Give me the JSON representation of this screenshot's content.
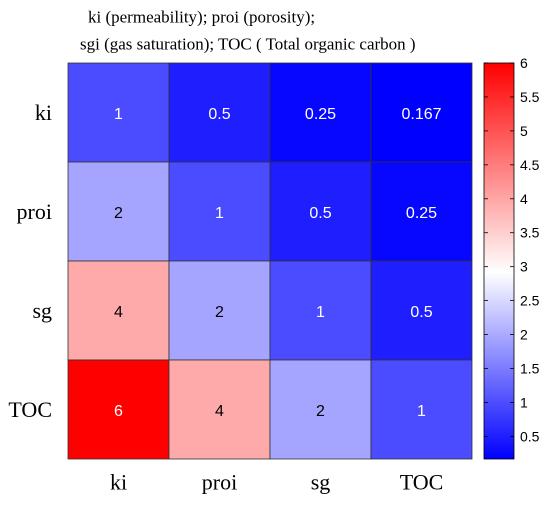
{
  "legend": {
    "line1": "ki (permeability);      proi (porosity);",
    "line2": "sgi (gas saturation);  TOC ( Total organic carbon )"
  },
  "chart_data": {
    "type": "heatmap",
    "row_labels": [
      "ki",
      "proi",
      "sg",
      "TOC"
    ],
    "col_labels": [
      "ki",
      "proi",
      "sg",
      "TOC"
    ],
    "values": [
      [
        1,
        0.5,
        0.25,
        0.167
      ],
      [
        2,
        1,
        0.5,
        0.25
      ],
      [
        4,
        2,
        1,
        0.5
      ],
      [
        6,
        4,
        2,
        1
      ]
    ],
    "cell_text": [
      [
        "1",
        "0.5",
        "0.25",
        "0.167"
      ],
      [
        "2",
        "1",
        "0.5",
        "0.25"
      ],
      [
        "4",
        "2",
        "1",
        "0.5"
      ],
      [
        "6",
        "4",
        "2",
        "1"
      ]
    ],
    "colormap": {
      "low": "#0000ff",
      "mid": "#ffffff",
      "high": "#ff0000"
    },
    "colorbar_range": [
      0.167,
      6
    ],
    "colorbar_ticks": [
      0.5,
      1,
      1.5,
      2,
      2.5,
      3,
      3.5,
      4,
      4.5,
      5,
      5.5,
      6
    ],
    "colorbar_tick_labels": [
      "0.5",
      "1",
      "1.5",
      "2",
      "2.5",
      "3",
      "3.5",
      "4",
      "4.5",
      "5",
      "5.5",
      "6"
    ]
  }
}
